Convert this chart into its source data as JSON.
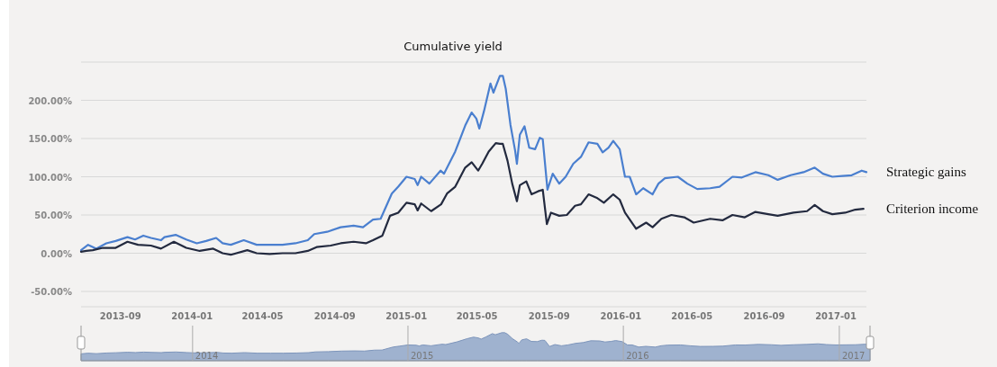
{
  "chart_data": {
    "type": "line",
    "title": "Cumulative yield",
    "xlim": [
      "2013-06-26",
      "2017-02-22"
    ],
    "xticks": [
      "2013-09",
      "2014-01",
      "2014-05",
      "2014-09",
      "2015-01",
      "2015-05",
      "2015-09",
      "2016-01",
      "2016-05",
      "2016-09",
      "2017-01"
    ],
    "ylim": [
      -70,
      250
    ],
    "yticks": [
      {
        "value": -50,
        "label": "-50.00%"
      },
      {
        "value": 0,
        "label": "0.00%"
      },
      {
        "value": 50,
        "label": "50.00%"
      },
      {
        "value": 100,
        "label": "100.00%"
      },
      {
        "value": 150,
        "label": "150.00%"
      },
      {
        "value": 200,
        "label": "200.00%"
      },
      {
        "value": 250,
        "label": null
      }
    ],
    "grid": "y",
    "marker": "none",
    "line_style": "solid",
    "annotations": [
      "2014",
      "2015",
      "2016",
      "2017"
    ],
    "series": [
      {
        "name": "Strategic gains",
        "color": "#4a7fcf",
        "x": [
          "2013-06-26",
          "2013-07-08",
          "2013-07-22",
          "2013-08-08",
          "2013-08-24",
          "2013-09-13",
          "2013-09-26",
          "2013-10-10",
          "2013-10-23",
          "2013-11-09",
          "2013-11-15",
          "2013-12-04",
          "2013-12-22",
          "2014-01-09",
          "2014-01-25",
          "2014-02-11",
          "2014-02-22",
          "2014-03-08",
          "2014-03-30",
          "2014-04-21",
          "2014-05-13",
          "2014-06-04",
          "2014-06-26",
          "2014-07-17",
          "2014-07-28",
          "2014-08-19",
          "2014-09-11",
          "2014-10-03",
          "2014-10-19",
          "2014-11-05",
          "2014-11-18",
          "2014-12-07",
          "2014-12-18",
          "2015-01-01",
          "2015-01-15",
          "2015-01-20",
          "2015-01-26",
          "2015-02-09",
          "2015-02-28",
          "2015-03-06",
          "2015-03-25",
          "2015-04-11",
          "2015-04-22",
          "2015-04-30",
          "2015-05-05",
          "2015-05-13",
          "2015-05-24",
          "2015-05-29",
          "2015-06-09",
          "2015-06-14",
          "2015-06-19",
          "2015-06-27",
          "2015-07-05",
          "2015-07-08",
          "2015-07-13",
          "2015-07-21",
          "2015-07-29",
          "2015-08-08",
          "2015-08-16",
          "2015-08-21",
          "2015-08-29",
          "2015-09-07",
          "2015-09-18",
          "2015-09-29",
          "2015-10-12",
          "2015-10-25",
          "2015-11-07",
          "2015-11-22",
          "2015-12-01",
          "2015-12-11",
          "2015-12-19",
          "2015-12-30",
          "2016-01-08",
          "2016-01-16",
          "2016-01-27",
          "2016-02-08",
          "2016-02-24",
          "2016-03-05",
          "2016-03-16",
          "2016-04-07",
          "2016-04-23",
          "2016-05-10",
          "2016-06-01",
          "2016-06-17",
          "2016-07-09",
          "2016-07-25",
          "2016-08-17",
          "2016-09-08",
          "2016-09-24",
          "2016-10-16",
          "2016-11-07",
          "2016-11-26",
          "2016-12-10",
          "2016-12-26",
          "2017-01-12",
          "2017-01-28",
          "2017-02-14",
          "2017-02-22"
        ],
        "values": [
          4,
          11,
          6,
          13,
          16,
          21,
          18,
          23,
          20,
          17,
          21,
          24,
          18,
          13,
          16,
          20,
          13,
          11,
          17,
          11,
          11,
          11,
          13,
          17,
          25,
          28,
          34,
          36,
          34,
          44,
          45,
          78,
          87,
          100,
          97,
          89,
          100,
          91,
          108,
          104,
          133,
          167,
          184,
          176,
          163,
          186,
          222,
          210,
          232,
          232,
          215,
          168,
          134,
          117,
          155,
          166,
          138,
          136,
          151,
          149,
          83,
          104,
          91,
          100,
          117,
          126,
          145,
          143,
          132,
          138,
          147,
          136,
          100,
          100,
          77,
          85,
          77,
          91,
          98,
          100,
          91,
          84,
          85,
          87,
          100,
          99,
          106,
          102,
          96,
          102,
          106,
          112,
          104,
          100,
          101,
          102,
          108,
          106
        ]
      },
      {
        "name": "Criterion income",
        "color": "#232a3f",
        "x": [
          "2013-06-26",
          "2013-07-05",
          "2013-07-16",
          "2013-08-02",
          "2013-08-24",
          "2013-09-13",
          "2013-10-01",
          "2013-10-23",
          "2013-11-09",
          "2013-12-01",
          "2013-12-22",
          "2014-01-14",
          "2014-02-06",
          "2014-02-22",
          "2014-03-08",
          "2014-04-05",
          "2014-04-21",
          "2014-05-13",
          "2014-06-04",
          "2014-06-26",
          "2014-07-17",
          "2014-08-01",
          "2014-08-25",
          "2014-09-11",
          "2014-10-03",
          "2014-10-24",
          "2014-11-05",
          "2014-11-21",
          "2014-12-04",
          "2014-12-18",
          "2015-01-01",
          "2015-01-15",
          "2015-01-20",
          "2015-01-26",
          "2015-02-12",
          "2015-03-01",
          "2015-03-11",
          "2015-03-25",
          "2015-04-11",
          "2015-04-22",
          "2015-05-03",
          "2015-05-10",
          "2015-05-21",
          "2015-06-02",
          "2015-06-09",
          "2015-06-14",
          "2015-06-22",
          "2015-06-30",
          "2015-07-08",
          "2015-07-13",
          "2015-07-24",
          "2015-08-02",
          "2015-08-13",
          "2015-08-21",
          "2015-08-28",
          "2015-09-04",
          "2015-09-18",
          "2015-10-01",
          "2015-10-15",
          "2015-10-25",
          "2015-11-07",
          "2015-11-22",
          "2015-12-03",
          "2015-12-19",
          "2015-12-30",
          "2016-01-08",
          "2016-01-27",
          "2016-02-13",
          "2016-02-24",
          "2016-03-10",
          "2016-03-27",
          "2016-04-18",
          "2016-05-04",
          "2016-06-01",
          "2016-06-22",
          "2016-07-09",
          "2016-07-30",
          "2016-08-17",
          "2016-09-08",
          "2016-09-24",
          "2016-10-21",
          "2016-11-13",
          "2016-11-26",
          "2016-12-10",
          "2016-12-26",
          "2017-01-17",
          "2017-02-03",
          "2017-02-17"
        ],
        "values": [
          2,
          3,
          4,
          7,
          7,
          15,
          11,
          10,
          6,
          15,
          7,
          3,
          6,
          0,
          -2,
          4,
          0,
          -1,
          0,
          0,
          3,
          8,
          10,
          13,
          15,
          13,
          17,
          23,
          49,
          53,
          66,
          64,
          56,
          65,
          55,
          64,
          78,
          87,
          112,
          119,
          108,
          117,
          133,
          144,
          143,
          143,
          121,
          91,
          68,
          89,
          94,
          77,
          81,
          83,
          38,
          53,
          49,
          50,
          62,
          64,
          77,
          72,
          66,
          77,
          70,
          53,
          32,
          40,
          34,
          45,
          50,
          47,
          40,
          45,
          43,
          50,
          47,
          54,
          51,
          49,
          53,
          55,
          63,
          55,
          51,
          53,
          57,
          58
        ]
      }
    ]
  }
}
